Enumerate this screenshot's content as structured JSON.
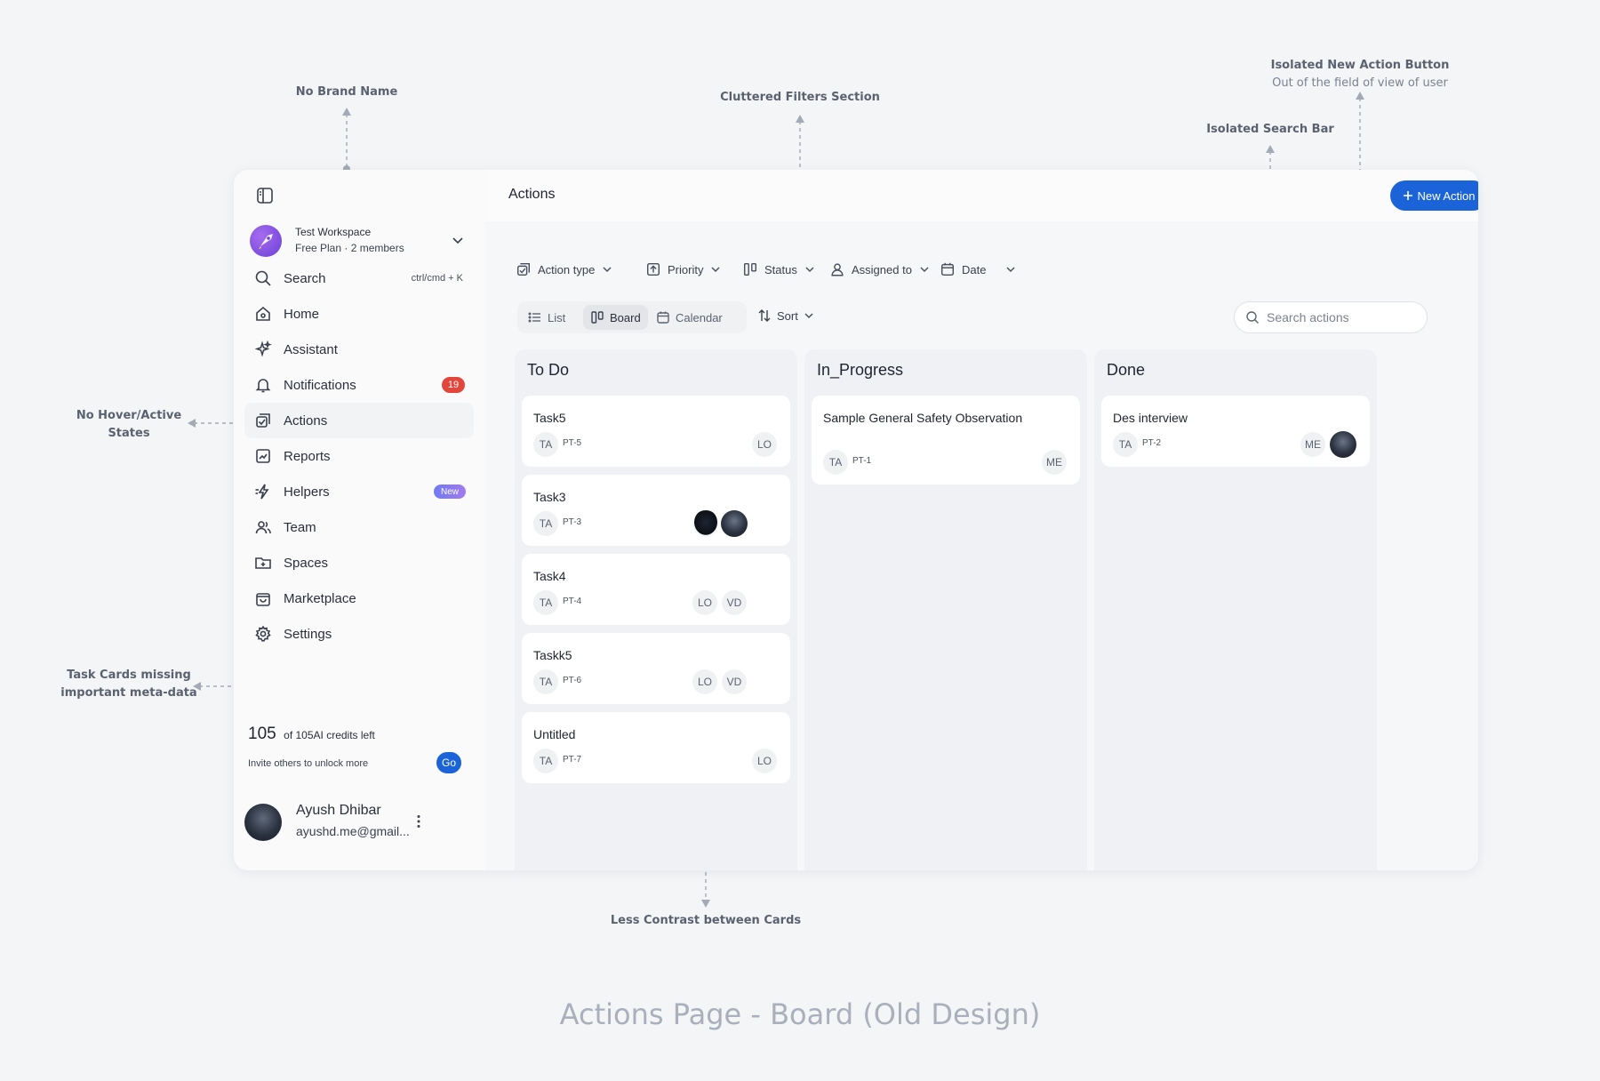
{
  "annotations": {
    "no_brand": "No Brand Name",
    "filters": "Cluttered Filters Section",
    "new_action_title": "Isolated New Action Button",
    "new_action_sub": "Out of the field of view of user",
    "search_bar": "Isolated Search Bar",
    "hover_line1": "No Hover/Active",
    "hover_line2": "States",
    "cards_line1": "Task Cards missing",
    "cards_line2": "important meta-data",
    "contrast": "Less Contrast between Cards"
  },
  "footer_title": "Actions Page - Board (Old Design)",
  "workspace": {
    "name": "Test Workspace",
    "plan": "Free Plan · 2 members"
  },
  "sidebar": {
    "search_label": "Search",
    "search_shortcut": "ctrl/cmd + K",
    "items": [
      {
        "label": "Home"
      },
      {
        "label": "Assistant"
      },
      {
        "label": "Notifications",
        "badge": "19"
      },
      {
        "label": "Actions"
      },
      {
        "label": "Reports"
      },
      {
        "label": "Helpers",
        "badge": "New"
      },
      {
        "label": "Team"
      },
      {
        "label": "Spaces"
      },
      {
        "label": "Marketplace"
      },
      {
        "label": "Settings"
      }
    ]
  },
  "credits": {
    "count": "105",
    "text": "of 105AI credits left",
    "invite": "Invite others to unlock more",
    "go_label": "Go"
  },
  "user": {
    "name": "Ayush Dhibar",
    "email": "ayushd.me@gmail..."
  },
  "header": {
    "title": "Actions",
    "new_action_label": "New Action"
  },
  "filters": [
    "Action type",
    "Priority",
    "Status",
    "Assigned to",
    "Date"
  ],
  "views": [
    "List",
    "Board",
    "Calendar"
  ],
  "active_view": "Board",
  "sort_label": "Sort",
  "search": {
    "placeholder": "Search actions"
  },
  "columns": [
    {
      "title": "To Do",
      "cards": [
        {
          "title": "Task5",
          "owner": "TA",
          "id": "PT-5",
          "assignees": [
            "LO"
          ]
        },
        {
          "title": "Task3",
          "owner": "TA",
          "id": "PT-3",
          "assignees": [
            "photo-fist",
            "photo-user"
          ]
        },
        {
          "title": "Task4",
          "owner": "TA",
          "id": "PT-4",
          "assignees": [
            "LO",
            "VD"
          ]
        },
        {
          "title": "Taskk5",
          "owner": "TA",
          "id": "PT-6",
          "assignees": [
            "LO",
            "VD"
          ]
        },
        {
          "title": "Untitled",
          "owner": "TA",
          "id": "PT-7",
          "assignees": [
            "LO"
          ]
        }
      ]
    },
    {
      "title": "In_Progress",
      "cards": [
        {
          "title": "Sample General Safety Observation",
          "owner": "TA",
          "id": "PT-1",
          "assignees": [
            "ME"
          ]
        }
      ]
    },
    {
      "title": "Done",
      "cards": [
        {
          "title": "Des interview",
          "owner": "TA",
          "id": "PT-2",
          "assignees": [
            "ME",
            "photo-user"
          ]
        }
      ]
    }
  ],
  "colors": {
    "accent": "#1b63d8",
    "badge_red": "#e2453c",
    "annotation": "#5a6270"
  }
}
